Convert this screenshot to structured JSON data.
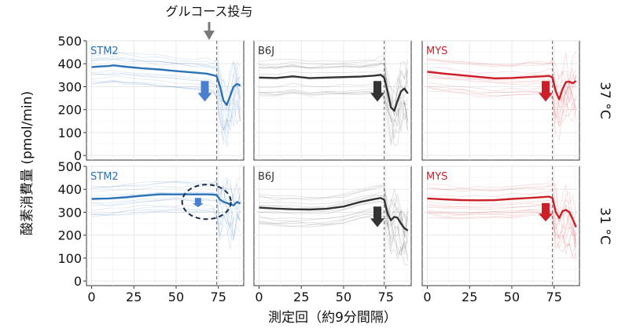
{
  "annotation": {
    "label": "グルコース投与",
    "x": 74
  },
  "ylabel": "酸素消費量 (pmol/min)",
  "xlabel": "測定回（約9分間隔）",
  "rows": [
    "37 °C",
    "31 °C"
  ],
  "colors": {
    "STM2": "#2b72b8",
    "B6J": "#333333",
    "MYS": "#cc1f27"
  },
  "chart_data": [
    {
      "type": "line",
      "panel": "STM2-37",
      "strain": "STM2",
      "temperature": "37 °C",
      "xlim": [
        -3,
        90
      ],
      "ylim": [
        -20,
        500
      ],
      "xticks": [
        0,
        25,
        50,
        75
      ],
      "yticks": [
        0,
        100,
        200,
        300,
        400,
        500
      ],
      "series": [
        {
          "name": "STM2",
          "values": [
            [
              0,
              385
            ],
            [
              5,
              388
            ],
            [
              10,
              390
            ],
            [
              13,
              393
            ],
            [
              20,
              387
            ],
            [
              30,
              380
            ],
            [
              40,
              375
            ],
            [
              50,
              368
            ],
            [
              60,
              362
            ],
            [
              68,
              357
            ],
            [
              72,
              350
            ],
            [
              74,
              345
            ],
            [
              76,
              300
            ],
            [
              78,
              240
            ],
            [
              80,
              220
            ],
            [
              82,
              260
            ],
            [
              84,
              300
            ],
            [
              86,
              312
            ],
            [
              88,
              305
            ]
          ]
        }
      ],
      "arrow": {
        "x": 67,
        "y_top": 325,
        "y_bottom": 235
      },
      "highlight": false
    },
    {
      "type": "line",
      "panel": "B6J-37",
      "strain": "B6J",
      "temperature": "37 °C",
      "xlim": [
        -3,
        90
      ],
      "ylim": [
        -20,
        500
      ],
      "xticks": [
        0,
        25,
        50,
        75
      ],
      "yticks": [
        0,
        100,
        200,
        300,
        400,
        500
      ],
      "series": [
        {
          "name": "B6J",
          "values": [
            [
              0,
              340
            ],
            [
              10,
              338
            ],
            [
              20,
              345
            ],
            [
              30,
              337
            ],
            [
              40,
              340
            ],
            [
              50,
              342
            ],
            [
              60,
              344
            ],
            [
              68,
              348
            ],
            [
              72,
              352
            ],
            [
              74,
              340
            ],
            [
              76,
              280
            ],
            [
              78,
              210
            ],
            [
              80,
              195
            ],
            [
              82,
              240
            ],
            [
              84,
              280
            ],
            [
              86,
              292
            ],
            [
              88,
              270
            ]
          ]
        }
      ],
      "arrow": {
        "x": 70,
        "y_top": 325,
        "y_bottom": 235
      },
      "highlight": false
    },
    {
      "type": "line",
      "panel": "MYS-37",
      "strain": "MYS",
      "temperature": "37 °C",
      "xlim": [
        -3,
        90
      ],
      "ylim": [
        -20,
        500
      ],
      "xticks": [
        0,
        25,
        50,
        75
      ],
      "yticks": [
        0,
        100,
        200,
        300,
        400,
        500
      ],
      "series": [
        {
          "name": "MYS",
          "values": [
            [
              0,
              365
            ],
            [
              10,
              357
            ],
            [
              20,
              350
            ],
            [
              30,
              343
            ],
            [
              40,
              336
            ],
            [
              50,
              338
            ],
            [
              60,
              342
            ],
            [
              68,
              345
            ],
            [
              72,
              347
            ],
            [
              74,
              340
            ],
            [
              76,
              280
            ],
            [
              78,
              245
            ],
            [
              80,
              290
            ],
            [
              82,
              320
            ],
            [
              84,
              322
            ],
            [
              86,
              315
            ],
            [
              88,
              325
            ]
          ]
        }
      ],
      "arrow": {
        "x": 70,
        "y_top": 325,
        "y_bottom": 235
      },
      "highlight": false
    },
    {
      "type": "line",
      "panel": "STM2-31",
      "strain": "STM2",
      "temperature": "31 °C",
      "xlim": [
        -3,
        90
      ],
      "ylim": [
        -20,
        500
      ],
      "xticks": [
        0,
        25,
        50,
        75
      ],
      "yticks": [
        0,
        100,
        200,
        300,
        400,
        500
      ],
      "series": [
        {
          "name": "STM2",
          "values": [
            [
              0,
              358
            ],
            [
              10,
              360
            ],
            [
              20,
              365
            ],
            [
              30,
              372
            ],
            [
              40,
              378
            ],
            [
              50,
              378
            ],
            [
              60,
              378
            ],
            [
              68,
              378
            ],
            [
              72,
              377
            ],
            [
              74,
              375
            ],
            [
              76,
              355
            ],
            [
              78,
              345
            ],
            [
              80,
              340
            ],
            [
              82,
              335
            ],
            [
              84,
              330
            ],
            [
              86,
              345
            ],
            [
              88,
              338
            ]
          ]
        }
      ],
      "arrow": {
        "x": 63,
        "y_top": 362,
        "y_bottom": 322
      },
      "highlight": true
    },
    {
      "type": "line",
      "panel": "B6J-31",
      "strain": "B6J",
      "temperature": "31 °C",
      "xlim": [
        -3,
        90
      ],
      "ylim": [
        -20,
        500
      ],
      "xticks": [
        0,
        25,
        50,
        75
      ],
      "yticks": [
        0,
        100,
        200,
        300,
        400,
        500
      ],
      "series": [
        {
          "name": "B6J",
          "values": [
            [
              0,
              320
            ],
            [
              10,
              316
            ],
            [
              20,
              313
            ],
            [
              30,
              312
            ],
            [
              40,
              315
            ],
            [
              50,
              325
            ],
            [
              60,
              345
            ],
            [
              68,
              357
            ],
            [
              72,
              362
            ],
            [
              74,
              355
            ],
            [
              76,
              295
            ],
            [
              78,
              265
            ],
            [
              80,
              280
            ],
            [
              82,
              275
            ],
            [
              84,
              250
            ],
            [
              86,
              230
            ],
            [
              88,
              220
            ]
          ]
        }
      ],
      "arrow": {
        "x": 70,
        "y_top": 325,
        "y_bottom": 235
      },
      "highlight": false
    },
    {
      "type": "line",
      "panel": "MYS-31",
      "strain": "MYS",
      "temperature": "31 °C",
      "xlim": [
        -3,
        90
      ],
      "ylim": [
        -20,
        500
      ],
      "xticks": [
        0,
        25,
        50,
        75
      ],
      "yticks": [
        0,
        100,
        200,
        300,
        400,
        500
      ],
      "series": [
        {
          "name": "MYS",
          "values": [
            [
              0,
              360
            ],
            [
              10,
              356
            ],
            [
              20,
              353
            ],
            [
              30,
              352
            ],
            [
              40,
              353
            ],
            [
              50,
              358
            ],
            [
              60,
              362
            ],
            [
              68,
              366
            ],
            [
              72,
              368
            ],
            [
              74,
              362
            ],
            [
              76,
              300
            ],
            [
              78,
              275
            ],
            [
              80,
              305
            ],
            [
              82,
              310
            ],
            [
              84,
              300
            ],
            [
              86,
              270
            ],
            [
              88,
              235
            ]
          ]
        }
      ],
      "arrow": {
        "x": 70,
        "y_top": 340,
        "y_bottom": 260
      },
      "highlight": false
    }
  ]
}
